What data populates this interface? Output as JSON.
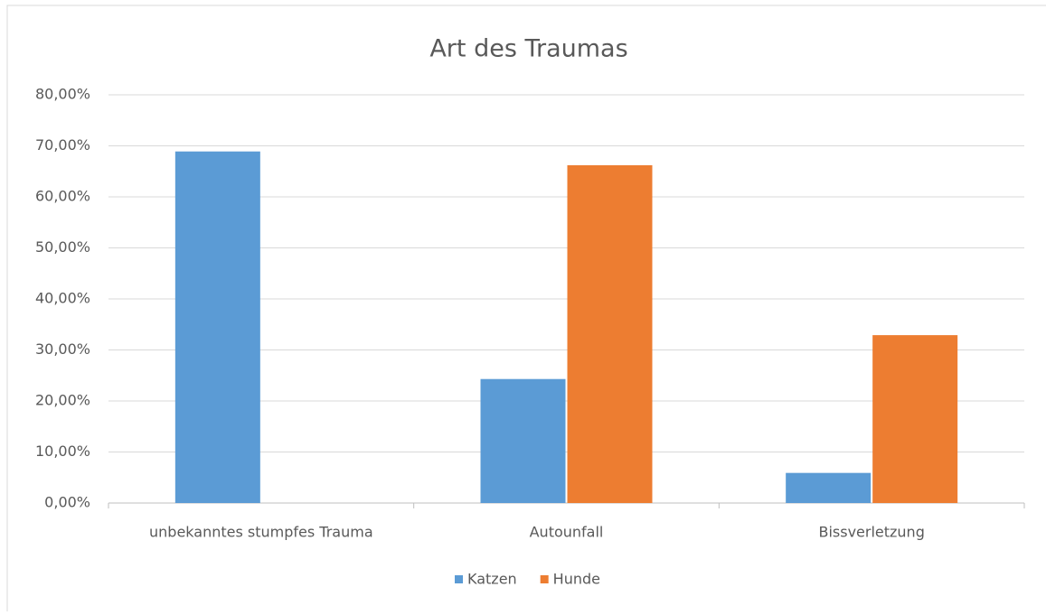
{
  "chart_data": {
    "type": "bar",
    "title": "Art des Traumas",
    "categories": [
      "unbekanntes stumpfes Trauma",
      "Autounfall",
      "Bissverletzung"
    ],
    "series": [
      {
        "name": "Katzen",
        "color": "#5b9bd5",
        "values": [
          68.9,
          24.3,
          5.9
        ]
      },
      {
        "name": "Hunde",
        "color": "#ed7d31",
        "values": [
          0,
          66.2,
          32.9
        ]
      }
    ],
    "ylim": [
      0,
      80
    ],
    "yticks": [
      {
        "value": 0,
        "label": "0,00%"
      },
      {
        "value": 10,
        "label": "10,00%"
      },
      {
        "value": 20,
        "label": "20,00%"
      },
      {
        "value": 30,
        "label": "30,00%"
      },
      {
        "value": 40,
        "label": "40,00%"
      },
      {
        "value": 50,
        "label": "50,00%"
      },
      {
        "value": 60,
        "label": "60,00%"
      },
      {
        "value": 70,
        "label": "70,00%"
      },
      {
        "value": 80,
        "label": "80,00%"
      }
    ],
    "grid": true,
    "legend": "bottom"
  }
}
